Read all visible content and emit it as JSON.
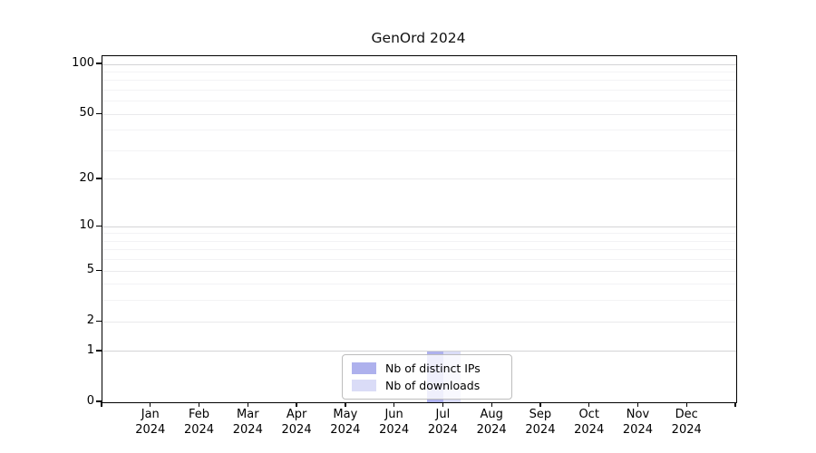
{
  "chart_data": {
    "type": "bar",
    "title": "GenOrd 2024",
    "categories": [
      "Jan",
      "Feb",
      "Mar",
      "Apr",
      "May",
      "Jun",
      "Jul",
      "Aug",
      "Sep",
      "Oct",
      "Nov",
      "Dec"
    ],
    "year_label": "2024",
    "series": [
      {
        "name": "Nb of distinct IPs",
        "color": "#aeb1ed",
        "values": [
          0,
          0,
          0,
          0,
          0,
          0,
          1,
          0,
          0,
          0,
          0,
          0
        ]
      },
      {
        "name": "Nb of downloads",
        "color": "#dadcf7",
        "values": [
          0,
          0,
          0,
          0,
          0,
          0,
          1,
          0,
          0,
          0,
          0,
          0
        ]
      }
    ],
    "y_scale": "log1p",
    "ylim": [
      0,
      112
    ],
    "y_ticks_labeled": [
      0,
      1,
      2,
      5,
      10,
      20,
      50,
      100
    ],
    "y_ticks_minor": [
      3,
      4,
      6,
      7,
      8,
      9,
      30,
      40,
      60,
      70,
      80,
      90
    ],
    "grid": "horizontal-only",
    "legend_position": "bottom-center",
    "colors": {
      "grid_power_of_ten": "#d4d4d6",
      "grid_labeled": "#eaeaec",
      "grid_minor": "#f3f3f5",
      "spine": "#000000"
    }
  }
}
